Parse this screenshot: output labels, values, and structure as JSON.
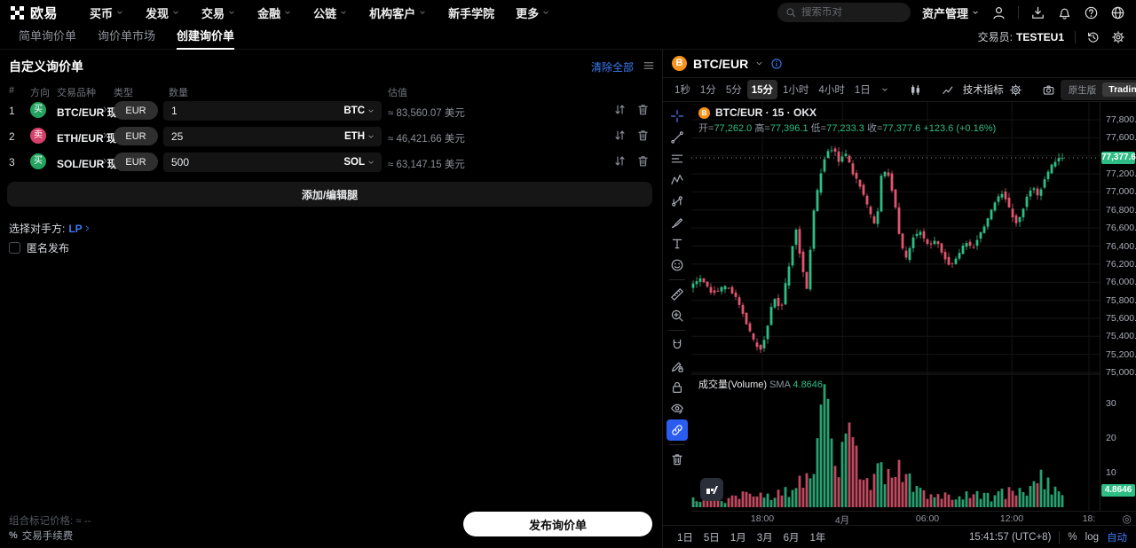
{
  "top_nav": {
    "logo_text": "欧易",
    "items": [
      {
        "label": "买币",
        "caret": true
      },
      {
        "label": "发现",
        "caret": true
      },
      {
        "label": "交易",
        "caret": true
      },
      {
        "label": "金融",
        "caret": true
      },
      {
        "label": "公链",
        "caret": true
      },
      {
        "label": "机构客户",
        "caret": true
      },
      {
        "label": "新手学院",
        "caret": false
      },
      {
        "label": "更多",
        "caret": true
      }
    ],
    "search_placeholder": "搜索币对",
    "assets_label": "资产管理",
    "right_icons": [
      "user",
      "download",
      "bell",
      "help",
      "globe"
    ]
  },
  "sub_nav": {
    "tabs": [
      {
        "label": "简单询价单",
        "active": false
      },
      {
        "label": "询价单市场",
        "active": false
      },
      {
        "label": "创建询价单",
        "active": true
      }
    ],
    "trader_label": "交易员:",
    "trader_value": "TESTEU1",
    "right_icons": [
      "history",
      "gear"
    ]
  },
  "rfq": {
    "title": "自定义询价单",
    "clear_all": "清除全部",
    "columns": {
      "index": "#",
      "side": "方向",
      "pair": "交易品种",
      "type": "类型",
      "amount": "数量",
      "value": "估值"
    },
    "legs": [
      {
        "index": "1",
        "side": "买",
        "side_type": "buy",
        "pair": "BTC/EUR 现货",
        "currency": "EUR",
        "amount": "1",
        "unit": "BTC",
        "value": "≈ 83,560.07 美元"
      },
      {
        "index": "2",
        "side": "卖",
        "side_type": "sell",
        "pair": "ETH/EUR 现货",
        "currency": "EUR",
        "amount": "25",
        "unit": "ETH",
        "value": "≈ 46,421.66 美元"
      },
      {
        "index": "3",
        "side": "买",
        "side_type": "buy",
        "pair": "SOL/EUR 现货",
        "currency": "EUR",
        "amount": "500",
        "unit": "SOL",
        "value": "≈ 63,147.15 美元"
      }
    ],
    "add_edit_legs": "添加/编辑腿",
    "counterparty_label": "选择对手方:",
    "counterparty_value": "LP",
    "anonymous_label": "匿名发布",
    "mark_price_label": "组合标记价格:",
    "mark_price_value": "≈ --",
    "fee_icon": "%",
    "fee_label": "交易手续费",
    "submit_label": "发布询价单"
  },
  "chart_panel": {
    "symbol": "BTC/EUR",
    "timeframes": [
      "1秒",
      "1分",
      "5分",
      "15分",
      "1小时",
      "4小时",
      "1日"
    ],
    "active_timeframe": "15分",
    "indicators_label": "技术指标",
    "version_options": [
      "原生版",
      "TradingView"
    ],
    "version_active": "TradingView",
    "left_toolbar": [
      "crosshair",
      "trend",
      "hlines",
      "pattern",
      "forecast",
      "brush",
      "text",
      "emoji",
      "|",
      "ruler",
      "zoom-in",
      "|",
      "magnet",
      "draw-lock",
      "lock",
      "eye",
      "link",
      "|",
      "trash"
    ],
    "left_toolbar_active": "link",
    "bottom_ranges": [
      "1日",
      "5日",
      "1月",
      "3月",
      "6月",
      "1年"
    ],
    "clock": "15:41:57 (UTC+8)",
    "scale_percent": "%",
    "scale_log": "log",
    "scale_auto": "自动"
  },
  "chart_data": {
    "type": "candlestick",
    "title": "BTC/EUR · 15 · OKX",
    "ohlc": {
      "open_label": "开=",
      "open": "77,262.0",
      "high_label": "高=",
      "high": "77,396.1",
      "low_label": "低=",
      "low": "77,233.3",
      "close_label": "收=",
      "close": "77,377.6",
      "change": "+123.6 (+0.16%)"
    },
    "last_price": 77377.6,
    "last_price_label": "77,377.6",
    "price_axis_values": [
      77800,
      77600,
      77400,
      77200,
      77000,
      76800,
      76600,
      76400,
      76200,
      76000,
      75800,
      75600,
      75400,
      75200,
      75000
    ],
    "price_axis_hidden_by_badge": 77400,
    "x_labels": [
      {
        "label": "18:00",
        "f": 0.174
      },
      {
        "label": "4月",
        "f": 0.37
      },
      {
        "label": "06:00",
        "f": 0.578
      },
      {
        "label": "12:00",
        "f": 0.785
      },
      {
        "label": "18:",
        "f": 0.974
      }
    ],
    "volume": {
      "legend_label": "成交量(Volume)",
      "sma_label": "SMA",
      "sma_value": "4.8646",
      "axis_values": [
        30,
        20,
        10
      ]
    },
    "candle_count": 105,
    "candle_domain": 0.913,
    "price_path": [
      [
        0.0,
        75950
      ],
      [
        0.03,
        76030
      ],
      [
        0.06,
        75880
      ],
      [
        0.1,
        75960
      ],
      [
        0.13,
        75800
      ],
      [
        0.155,
        75520
      ],
      [
        0.175,
        75310
      ],
      [
        0.19,
        75260
      ],
      [
        0.205,
        75420
      ],
      [
        0.225,
        75850
      ],
      [
        0.245,
        75700
      ],
      [
        0.265,
        76150
      ],
      [
        0.285,
        76600
      ],
      [
        0.3,
        76200
      ],
      [
        0.315,
        75900
      ],
      [
        0.33,
        76700
      ],
      [
        0.35,
        77180
      ],
      [
        0.365,
        77420
      ],
      [
        0.385,
        77480
      ],
      [
        0.4,
        77350
      ],
      [
        0.42,
        77420
      ],
      [
        0.44,
        77180
      ],
      [
        0.46,
        77050
      ],
      [
        0.48,
        76800
      ],
      [
        0.5,
        76600
      ],
      [
        0.515,
        77200
      ],
      [
        0.53,
        77250
      ],
      [
        0.55,
        76900
      ],
      [
        0.565,
        76450
      ],
      [
        0.58,
        76250
      ],
      [
        0.6,
        76500
      ],
      [
        0.62,
        76550
      ],
      [
        0.64,
        76400
      ],
      [
        0.66,
        76480
      ],
      [
        0.68,
        76300
      ],
      [
        0.7,
        76180
      ],
      [
        0.72,
        76300
      ],
      [
        0.74,
        76450
      ],
      [
        0.76,
        76380
      ],
      [
        0.78,
        76550
      ],
      [
        0.8,
        76700
      ],
      [
        0.82,
        76900
      ],
      [
        0.84,
        77000
      ],
      [
        0.86,
        76800
      ],
      [
        0.875,
        76650
      ],
      [
        0.89,
        76750
      ],
      [
        0.905,
        76950
      ],
      [
        0.92,
        77050
      ],
      [
        0.935,
        76950
      ],
      [
        0.95,
        77120
      ],
      [
        0.97,
        77280
      ],
      [
        0.985,
        77350
      ],
      [
        1.0,
        77377.6
      ]
    ],
    "volume_path": [
      [
        0,
        2.5
      ],
      [
        0.08,
        1.8
      ],
      [
        0.14,
        3.5
      ],
      [
        0.18,
        5
      ],
      [
        0.22,
        3
      ],
      [
        0.27,
        6
      ],
      [
        0.3,
        9
      ],
      [
        0.33,
        18
      ],
      [
        0.355,
        36
      ],
      [
        0.37,
        20
      ],
      [
        0.39,
        12
      ],
      [
        0.41,
        16
      ],
      [
        0.43,
        22
      ],
      [
        0.45,
        9
      ],
      [
        0.48,
        7
      ],
      [
        0.5,
        13
      ],
      [
        0.53,
        8
      ],
      [
        0.56,
        11
      ],
      [
        0.6,
        5
      ],
      [
        0.65,
        3.5
      ],
      [
        0.7,
        2.5
      ],
      [
        0.75,
        3.5
      ],
      [
        0.8,
        3
      ],
      [
        0.85,
        4.5
      ],
      [
        0.9,
        4
      ],
      [
        0.93,
        9
      ],
      [
        0.96,
        6
      ],
      [
        1.0,
        4.5
      ]
    ],
    "colors": {
      "up": "#2ebd85",
      "down": "#e1566e",
      "badge": "#2ebd85",
      "grid": "#151515"
    }
  }
}
